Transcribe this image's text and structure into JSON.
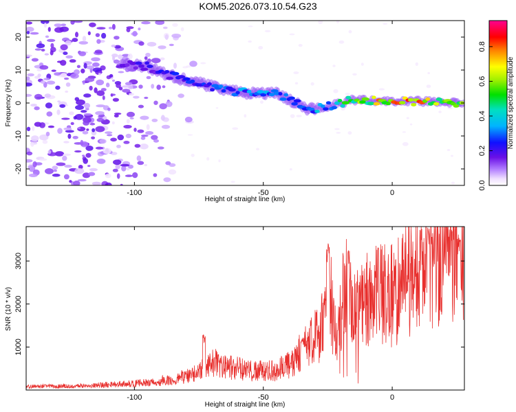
{
  "title": "KOM5.2026.073.10.54.G23",
  "chart_data": [
    {
      "type": "heatmap",
      "xlabel": "Height of straight line (km)",
      "ylabel": "Frequency (Hz)",
      "xlim": [
        -142,
        28
      ],
      "ylim": [
        -25,
        25
      ],
      "x_ticks": [
        -100,
        -50,
        0
      ],
      "x_tick_labels": [
        "-100",
        "-50",
        "0"
      ],
      "y_ticks": [
        -20,
        -10,
        0,
        10,
        20
      ],
      "y_tick_labels": [
        "-20",
        "-10",
        "0",
        "10",
        "20"
      ],
      "colorbar": {
        "label": "Normalized spectral amplitude",
        "range": [
          0,
          0.95
        ],
        "ticks": [
          0.0,
          0.2,
          0.4,
          0.6,
          0.8
        ],
        "tick_labels": [
          "0.0",
          "0.2",
          "0.4",
          "0.6",
          "0.8"
        ]
      },
      "ridge": {
        "name": "",
        "x": [
          -105,
          -95,
          -85,
          -75,
          -65,
          -55,
          -45,
          -38,
          -32,
          -25,
          -15,
          0,
          10,
          20,
          28
        ],
        "y": [
          12,
          11,
          8,
          6,
          4,
          3,
          3,
          0,
          -2,
          -1,
          1,
          0.5,
          0.5,
          0.3,
          0
        ],
        "amplitude": [
          0.15,
          0.2,
          0.22,
          0.25,
          0.28,
          0.3,
          0.3,
          0.3,
          0.32,
          0.35,
          0.5,
          0.75,
          0.7,
          0.6,
          0.55
        ]
      },
      "noise_region_x": [
        -142,
        -85
      ]
    },
    {
      "type": "line",
      "xlabel": "Height of straight line (km)",
      "ylabel": "SNR (10 * v/v)",
      "xlim": [
        -142,
        28
      ],
      "ylim": [
        0,
        3800
      ],
      "x_ticks": [
        -100,
        -50,
        0
      ],
      "x_tick_labels": [
        "-100",
        "-50",
        "0"
      ],
      "y_ticks": [
        1000,
        2000,
        3000
      ],
      "y_tick_labels": [
        "1000",
        "2000",
        "3000"
      ],
      "color": "#e8302e",
      "series": [
        {
          "name": "",
          "x": [
            -142,
            -120,
            -100,
            -85,
            -75,
            -70,
            -65,
            -55,
            -45,
            -40,
            -35,
            -30,
            -27,
            -25,
            -22,
            -20,
            -17,
            -15,
            -10,
            -5,
            0,
            5,
            10,
            15,
            20,
            25,
            28
          ],
          "values": [
            80,
            100,
            150,
            250,
            400,
            700,
            550,
            450,
            450,
            600,
            900,
            1200,
            1500,
            2600,
            1300,
            1900,
            2500,
            1700,
            2100,
            2200,
            2200,
            2500,
            2700,
            3100,
            3200,
            3400,
            3500
          ]
        }
      ],
      "spikes": [
        {
          "x": -73,
          "value": 1300
        },
        {
          "x": -35,
          "value": 1250
        },
        {
          "x": -25,
          "value": 3450
        },
        {
          "x": -17,
          "value": 3350
        },
        {
          "x": 14,
          "value": 3800
        },
        {
          "x": 26,
          "value": 3750
        }
      ]
    }
  ]
}
